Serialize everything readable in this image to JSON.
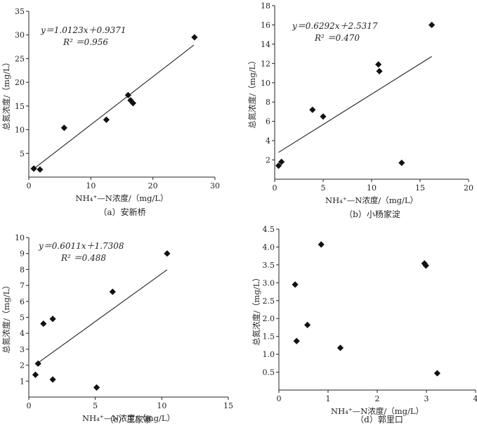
{
  "chart_data": [
    {
      "type": "scatter",
      "caption": "（a）安新桥",
      "xlabel": "NH₄⁺—N浓度/（mg/L）",
      "ylabel": "总氮浓度/（mg/L）",
      "xlim": [
        0,
        30
      ],
      "ylim": [
        0,
        35
      ],
      "xticks": [
        "0",
        "10",
        "20",
        "30"
      ],
      "yticks": [
        "5",
        "10",
        "15",
        "20",
        "25",
        "30",
        "35"
      ],
      "equation": "y＝1.0123x＋0.9371",
      "r2": "R² ＝0.956",
      "trend": {
        "slope": 1.0123,
        "intercept": 0.9371,
        "x_range": [
          0.6,
          26.6
        ]
      },
      "points": [
        {
          "x": 0.8,
          "y": 1.8
        },
        {
          "x": 1.8,
          "y": 1.6
        },
        {
          "x": 5.7,
          "y": 10.4
        },
        {
          "x": 12.5,
          "y": 12.1
        },
        {
          "x": 16.0,
          "y": 17.3
        },
        {
          "x": 16.4,
          "y": 16.2
        },
        {
          "x": 16.8,
          "y": 15.6
        },
        {
          "x": 26.7,
          "y": 29.5
        }
      ]
    },
    {
      "type": "scatter",
      "caption": "（b）小杨家淀",
      "xlabel": "NH₄⁺—N浓度/（mg/L）",
      "ylabel": "总氮浓度/（mg/L）",
      "xlim": [
        0,
        20
      ],
      "ylim": [
        0,
        18
      ],
      "xticks": [
        "0",
        "5",
        "10",
        "15",
        "20"
      ],
      "yticks": [
        "2",
        "4",
        "6",
        "8",
        "10",
        "12",
        "14",
        "16",
        "18"
      ],
      "equation": "y＝0.6292x＋2.5317",
      "r2": "R² ＝0.470",
      "trend": {
        "slope": 0.6292,
        "intercept": 2.5317,
        "x_range": [
          0.4,
          16.2
        ]
      },
      "points": [
        {
          "x": 0.4,
          "y": 1.4
        },
        {
          "x": 0.7,
          "y": 1.8
        },
        {
          "x": 3.9,
          "y": 7.2
        },
        {
          "x": 5.0,
          "y": 6.5
        },
        {
          "x": 10.7,
          "y": 11.9
        },
        {
          "x": 10.8,
          "y": 11.2
        },
        {
          "x": 13.1,
          "y": 1.7
        },
        {
          "x": 16.2,
          "y": 16.0
        }
      ]
    },
    {
      "type": "scatter",
      "caption": "（c）王家寨",
      "xlabel": "NH₄⁺—N浓度/（mg/L）",
      "ylabel": "总氮浓度/（mg/L）",
      "xlim": [
        0,
        15
      ],
      "ylim": [
        0,
        10
      ],
      "xticks": [
        "0",
        "5",
        "10",
        "15"
      ],
      "yticks": [
        "1",
        "2",
        "3",
        "4",
        "5",
        "6",
        "7",
        "8",
        "9",
        "10"
      ],
      "equation": "y＝0.6011x＋1.7308",
      "r2": "R² ＝0.488",
      "trend": {
        "slope": 0.6011,
        "intercept": 1.7308,
        "x_range": [
          0.5,
          10.4
        ]
      },
      "points": [
        {
          "x": 0.5,
          "y": 1.4
        },
        {
          "x": 0.7,
          "y": 2.1
        },
        {
          "x": 1.1,
          "y": 4.6
        },
        {
          "x": 1.8,
          "y": 4.9
        },
        {
          "x": 1.8,
          "y": 1.1
        },
        {
          "x": 5.1,
          "y": 0.6
        },
        {
          "x": 6.3,
          "y": 6.6
        },
        {
          "x": 10.4,
          "y": 9.0
        }
      ]
    },
    {
      "type": "scatter",
      "caption": "（d）郭里口",
      "xlabel": "NH₄⁺—N浓度/（mg/L）",
      "ylabel": "总氮浓度/（mg/L）",
      "xlim": [
        0,
        4
      ],
      "ylim": [
        0,
        4.5
      ],
      "xticks": [
        "0",
        "1",
        "2",
        "3",
        "4"
      ],
      "yticks": [
        "0.5",
        "1.0",
        "1.5",
        "2.0",
        "2.5",
        "3.0",
        "3.5",
        "4.0",
        "4.5"
      ],
      "equation": "",
      "r2": "",
      "trend": null,
      "points": [
        {
          "x": 0.33,
          "y": 2.95
        },
        {
          "x": 0.36,
          "y": 1.37
        },
        {
          "x": 0.58,
          "y": 1.82
        },
        {
          "x": 0.86,
          "y": 4.07
        },
        {
          "x": 1.25,
          "y": 1.18
        },
        {
          "x": 2.96,
          "y": 3.54
        },
        {
          "x": 2.99,
          "y": 3.48
        },
        {
          "x": 3.22,
          "y": 0.47
        }
      ]
    }
  ]
}
